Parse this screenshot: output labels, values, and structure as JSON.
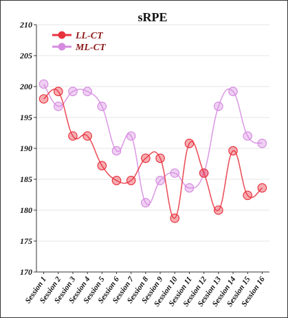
{
  "chart_data": {
    "type": "line",
    "title": "sRPE",
    "xlabel": "",
    "ylabel": "",
    "categories": [
      "Session 1",
      "Session 2",
      "Session 3",
      "Session 4",
      "Session 5",
      "Session 6",
      "Session 7",
      "Session 8",
      "Session 9",
      "Session 10",
      "Session 11",
      "Session 12",
      "Session 13",
      "Session 14",
      "Session 15",
      "Session 16"
    ],
    "ylim": [
      170,
      210
    ],
    "yticks": [
      "170",
      "175",
      "180",
      "185",
      "190",
      "195",
      "200",
      "205",
      "210"
    ],
    "grid": true,
    "legend": "top-left",
    "series": [
      {
        "name": "LL-CT",
        "color": "#e8333f",
        "values": [
          198,
          199.2,
          192,
          192,
          187.2,
          184.8,
          184.8,
          188.4,
          188.4,
          178.7,
          190.8,
          186,
          180,
          189.6,
          182.4,
          183.6
        ]
      },
      {
        "name": "ML-CT",
        "color": "#d68be0",
        "values": [
          200.4,
          196.8,
          199.2,
          199.2,
          196.8,
          189.6,
          192,
          181.2,
          184.8,
          186,
          183.6,
          186,
          196.8,
          199.2,
          192,
          190.8
        ]
      }
    ]
  }
}
